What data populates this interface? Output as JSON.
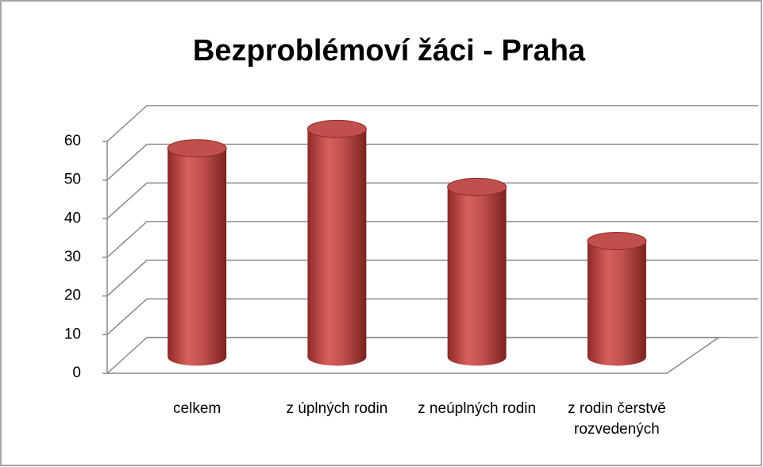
{
  "chart_data": {
    "type": "bar",
    "title": "Bezproblémoví žáci - Praha",
    "categories": [
      "celkem",
      "z úplných rodin",
      "z neúplných rodin",
      "z rodin čerstvě rozvedených"
    ],
    "values": [
      54,
      59,
      44,
      30
    ],
    "color": "#c0504d",
    "ylim": [
      0,
      60
    ],
    "yticks": [
      0,
      10,
      20,
      30,
      40,
      50,
      60
    ],
    "grid": true
  }
}
